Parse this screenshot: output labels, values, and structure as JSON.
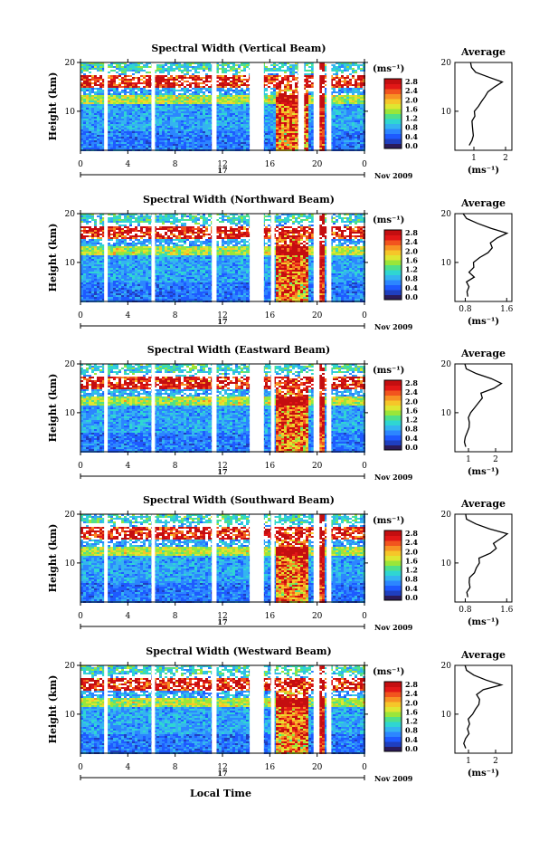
{
  "figure": {
    "local_time_label": "Local Time"
  },
  "colorbar": {
    "unit": "(ms⁻¹)",
    "ticks": [
      "2.8",
      "2.4",
      "2.0",
      "1.6",
      "1.2",
      "0.8",
      "0.4",
      "0.0"
    ],
    "colors": [
      "#2b1b5a",
      "#1f3fbf",
      "#1e5aff",
      "#2c86ff",
      "#34b4f0",
      "#2fd6d2",
      "#4fe08a",
      "#9ae63a",
      "#dfe631",
      "#f6c629",
      "#f79124",
      "#f2541e",
      "#e21717",
      "#c40e10"
    ]
  },
  "chart_data": [
    {
      "type": "heatmap",
      "title": "Spectral Width (Vertical Beam)",
      "ylabel": "Height (km)",
      "xlim": [
        0,
        24
      ],
      "ylim": [
        2,
        20
      ],
      "x_ticks": [
        "0",
        "4",
        "8",
        "12",
        "16",
        "20",
        "0"
      ],
      "y_ticks": [
        "10",
        "20"
      ],
      "date_tick": "17",
      "date_label": "Nov 2009",
      "data_gaps": [
        [
          2.0,
          2.3
        ],
        [
          6.0,
          6.3
        ],
        [
          11.1,
          11.5
        ],
        [
          14.3,
          15.5
        ],
        [
          18.4,
          18.9
        ],
        [
          19.7,
          20.2
        ],
        [
          20.8,
          21.2
        ]
      ],
      "profile": {
        "title": "Average",
        "xlabel": "(ms⁻¹)",
        "xlim": [
          0.4,
          2.2
        ],
        "x_ticks": [
          "1",
          "2"
        ],
        "x_tick_values": [
          1,
          2
        ],
        "y_ticks": [
          "10",
          "20"
        ],
        "heights": [
          3,
          4,
          5,
          6,
          7,
          8,
          9,
          10,
          11,
          12,
          13,
          14,
          15,
          16,
          17,
          18,
          19,
          20
        ],
        "values": [
          0.85,
          0.9,
          0.95,
          0.95,
          0.98,
          1.0,
          1.02,
          1.05,
          1.1,
          1.2,
          1.3,
          1.45,
          1.65,
          1.85,
          1.45,
          1.1,
          0.9,
          0.85
        ]
      }
    },
    {
      "type": "heatmap",
      "title": "Spectral Width (Northward Beam)",
      "ylabel": "Height (km)",
      "xlim": [
        0,
        24
      ],
      "ylim": [
        2,
        20
      ],
      "x_ticks": [
        "0",
        "4",
        "8",
        "12",
        "16",
        "20",
        "0"
      ],
      "y_ticks": [
        "10",
        "20"
      ],
      "date_tick": "17",
      "date_label": "Nov 2009",
      "data_gaps": [
        [
          2.0,
          2.3
        ],
        [
          6.0,
          6.3
        ],
        [
          11.1,
          11.5
        ],
        [
          14.3,
          15.5
        ],
        [
          16.1,
          16.4
        ],
        [
          19.7,
          20.2
        ],
        [
          20.8,
          21.2
        ]
      ],
      "profile": {
        "title": "Average",
        "xlabel": "(ms⁻¹)",
        "xlim": [
          0.6,
          1.7
        ],
        "x_ticks": [
          "0.8",
          "1.6"
        ],
        "x_tick_values": [
          0.8,
          1.6
        ],
        "y_ticks": [
          "10",
          "20"
        ],
        "heights": [
          3,
          4,
          5,
          6,
          7,
          8,
          9,
          10,
          11,
          12,
          13,
          14,
          15,
          16,
          17,
          18,
          19,
          20
        ],
        "values": [
          0.85,
          0.8,
          0.9,
          0.85,
          0.95,
          0.9,
          0.95,
          1.0,
          1.05,
          1.2,
          1.35,
          1.3,
          1.45,
          1.6,
          1.3,
          1.05,
          0.85,
          0.8
        ]
      }
    },
    {
      "type": "heatmap",
      "title": "Spectral Width (Eastward Beam)",
      "ylabel": "Height (km)",
      "xlim": [
        0,
        24
      ],
      "ylim": [
        2,
        20
      ],
      "x_ticks": [
        "0",
        "4",
        "8",
        "12",
        "16",
        "20",
        "0"
      ],
      "y_ticks": [
        "10",
        "20"
      ],
      "date_tick": "17",
      "date_label": "Nov 2009",
      "data_gaps": [
        [
          2.0,
          2.3
        ],
        [
          6.0,
          6.3
        ],
        [
          11.1,
          11.5
        ],
        [
          14.3,
          15.5
        ],
        [
          16.1,
          16.4
        ],
        [
          19.7,
          20.2
        ],
        [
          20.8,
          21.2
        ]
      ],
      "profile": {
        "title": "Average",
        "xlabel": "(ms⁻¹)",
        "xlim": [
          0.5,
          2.6
        ],
        "x_ticks": [
          "1",
          "2"
        ],
        "x_tick_values": [
          1,
          2
        ],
        "y_ticks": [
          "10",
          "20"
        ],
        "heights": [
          3,
          4,
          5,
          6,
          7,
          8,
          9,
          10,
          11,
          12,
          13,
          14,
          15,
          16,
          17,
          18,
          19,
          20
        ],
        "values": [
          0.9,
          0.85,
          0.9,
          0.95,
          0.95,
          1.0,
          1.05,
          1.1,
          1.15,
          1.3,
          1.45,
          1.5,
          1.9,
          2.3,
          1.8,
          1.3,
          1.0,
          0.9
        ]
      }
    },
    {
      "type": "heatmap",
      "title": "Spectral Width (Southward Beam)",
      "ylabel": "Height (km)",
      "xlim": [
        0,
        24
      ],
      "ylim": [
        2,
        20
      ],
      "x_ticks": [
        "0",
        "4",
        "8",
        "12",
        "16",
        "20",
        "0"
      ],
      "y_ticks": [
        "10",
        "20"
      ],
      "date_tick": "17",
      "date_label": "Nov 2009",
      "data_gaps": [
        [
          2.0,
          2.3
        ],
        [
          6.0,
          6.3
        ],
        [
          11.1,
          11.5
        ],
        [
          14.3,
          15.5
        ],
        [
          16.1,
          16.4
        ],
        [
          19.7,
          20.2
        ],
        [
          20.8,
          21.2
        ]
      ],
      "profile": {
        "title": "Average",
        "xlabel": "(ms⁻¹)",
        "xlim": [
          0.6,
          1.7
        ],
        "x_ticks": [
          "0.8",
          "1.6"
        ],
        "x_tick_values": [
          0.8,
          1.6
        ],
        "y_ticks": [
          "10",
          "20"
        ],
        "heights": [
          3,
          4,
          5,
          6,
          7,
          8,
          9,
          10,
          11,
          12,
          13,
          14,
          15,
          16,
          17,
          18,
          19,
          20
        ],
        "values": [
          0.85,
          0.8,
          0.85,
          0.9,
          0.9,
          0.95,
          1.0,
          1.05,
          1.1,
          1.25,
          1.4,
          1.35,
          1.5,
          1.62,
          1.3,
          1.0,
          0.85,
          0.8
        ]
      }
    },
    {
      "type": "heatmap",
      "title": "Spectral Width (Westward Beam)",
      "ylabel": "Height (km)",
      "xlim": [
        0,
        24
      ],
      "ylim": [
        2,
        20
      ],
      "x_ticks": [
        "0",
        "4",
        "8",
        "12",
        "16",
        "20",
        "0"
      ],
      "y_ticks": [
        "10",
        "20"
      ],
      "date_tick": "17",
      "date_label": "Nov 2009",
      "data_gaps": [
        [
          2.0,
          2.3
        ],
        [
          6.0,
          6.3
        ],
        [
          11.1,
          11.5
        ],
        [
          14.3,
          15.5
        ],
        [
          16.1,
          16.4
        ],
        [
          19.7,
          20.2
        ],
        [
          20.8,
          21.2
        ]
      ],
      "profile": {
        "title": "Average",
        "xlabel": "(ms⁻¹)",
        "xlim": [
          0.5,
          2.6
        ],
        "x_ticks": [
          "1",
          "2"
        ],
        "x_tick_values": [
          1,
          2
        ],
        "y_ticks": [
          "10",
          "20"
        ],
        "heights": [
          3,
          4,
          5,
          6,
          7,
          8,
          9,
          10,
          11,
          12,
          13,
          14,
          15,
          16,
          17,
          18,
          19,
          20
        ],
        "values": [
          0.9,
          0.85,
          0.9,
          0.95,
          1.0,
          1.0,
          1.05,
          1.1,
          1.2,
          1.35,
          1.4,
          1.3,
          1.5,
          2.2,
          1.7,
          1.2,
          0.95,
          0.9
        ]
      }
    }
  ]
}
